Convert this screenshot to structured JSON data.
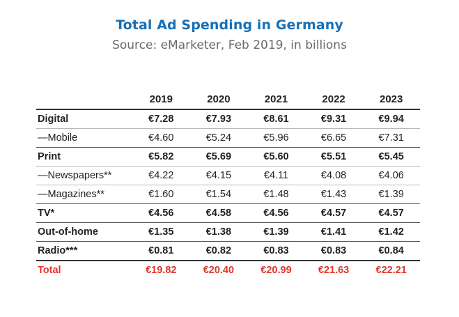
{
  "title": "Total Ad Spending in Germany",
  "subtitle": "Source: eMarketer, Feb 2019, in billions",
  "colors": {
    "title": "#1570b8",
    "subtitle": "#6a6a6a",
    "total_row": "#e0352b",
    "text": "#222222"
  },
  "chart_data": {
    "type": "table",
    "title": "Total Ad Spending in Germany",
    "subtitle": "Source: eMarketer, Feb 2019, in billions",
    "columns": [
      "2019",
      "2020",
      "2021",
      "2022",
      "2023"
    ],
    "rows": [
      {
        "label": "Digital",
        "bold": true,
        "values": [
          "€7.28",
          "€7.93",
          "€8.61",
          "€9.31",
          "€9.94"
        ]
      },
      {
        "label": "—Mobile",
        "bold": false,
        "values": [
          "€4.60",
          "€5.24",
          "€5.96",
          "€6.65",
          "€7.31"
        ]
      },
      {
        "label": "Print",
        "bold": true,
        "values": [
          "€5.82",
          "€5.69",
          "€5.60",
          "€5.51",
          "€5.45"
        ]
      },
      {
        "label": "—Newspapers**",
        "bold": false,
        "values": [
          "€4.22",
          "€4.15",
          "€4.11",
          "€4.08",
          "€4.06"
        ]
      },
      {
        "label": "—Magazines**",
        "bold": false,
        "values": [
          "€1.60",
          "€1.54",
          "€1.48",
          "€1.43",
          "€1.39"
        ]
      },
      {
        "label": "TV*",
        "bold": true,
        "values": [
          "€4.56",
          "€4.58",
          "€4.56",
          "€4.57",
          "€4.57"
        ]
      },
      {
        "label": "Out-of-home",
        "bold": true,
        "values": [
          "€1.35",
          "€1.38",
          "€1.39",
          "€1.41",
          "€1.42"
        ]
      },
      {
        "label": "Radio***",
        "bold": true,
        "values": [
          "€0.81",
          "€0.82",
          "€0.83",
          "€0.83",
          "€0.84"
        ]
      },
      {
        "label": "Total",
        "bold": true,
        "total": true,
        "values": [
          "€19.82",
          "€20.40",
          "€20.99",
          "€21.63",
          "€22.21"
        ]
      }
    ]
  }
}
